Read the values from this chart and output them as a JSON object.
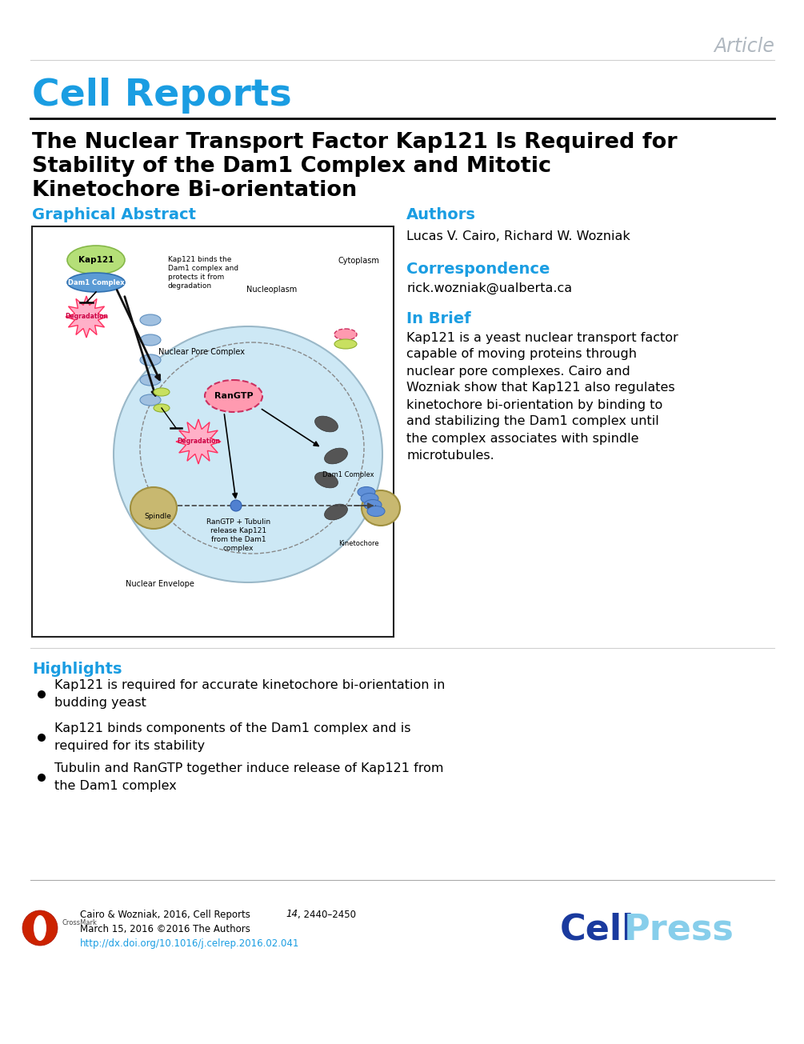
{
  "background_color": "#ffffff",
  "article_label": "Article",
  "article_label_color": "#b0b8c0",
  "journal_color": "#1a9de2",
  "title_color": "#000000",
  "section_color": "#1a9de2",
  "graphical_abstract_label": "Graphical Abstract",
  "authors_label": "Authors",
  "authors_text": "Lucas V. Cairo, Richard W. Wozniak",
  "correspondence_label": "Correspondence",
  "correspondence_text": "rick.wozniak@ualberta.ca",
  "inbrief_label": "In Brief",
  "inbrief_text": "Kap121 is a yeast nuclear transport factor\ncapable of moving proteins through\nnuclear pore complexes. Cairo and\nWozniak show that Kap121 also regulates\nkinetochore bi-orientation by binding to\nand stabilizing the Dam1 complex until\nthe complex associates with spindle\nmicrotubules.",
  "highlights_label": "Highlights",
  "highlight1": "Kap121 is required for accurate kinetochore bi-orientation in\nbudding yeast",
  "highlight2": "Kap121 binds components of the Dam1 complex and is\nrequired for its stability",
  "highlight3": "Tubulin and RanGTP together induce release of Kap121 from\nthe Dam1 complex",
  "footer_citation": "Cairo & Wozniak, 2016, Cell Reports ",
  "footer_citation_italic": "14",
  "footer_citation_end": ", 2440–2450",
  "footer_date": "March 15, 2016 ©2016 The Authors",
  "footer_doi": "http://dx.doi.org/10.1016/j.celrep.2016.02.041",
  "footer_doi_color": "#1a9de2",
  "cellpress_cell_color": "#1a3a9e",
  "cellpress_press_color": "#87ceeb"
}
